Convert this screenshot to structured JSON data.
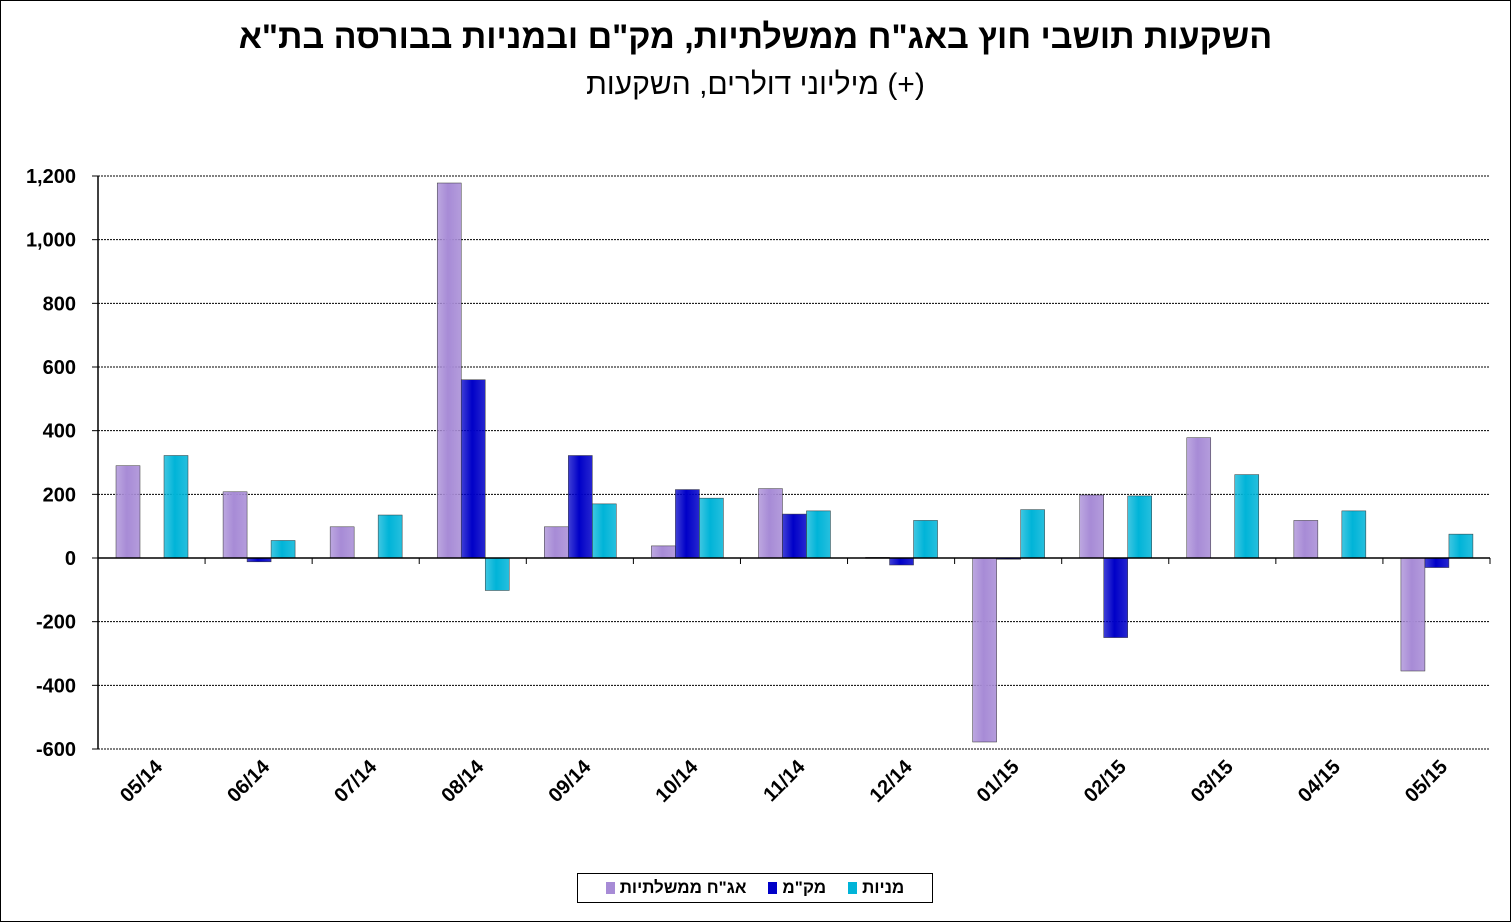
{
  "chart_data": {
    "type": "bar",
    "title": "השקעות תושבי חוץ באג\"ח ממשלתיות, מק\"ם ובמניות בבורסה בת\"א",
    "subtitle": "מיליוני דולרים, השקעות (+)",
    "categories": [
      "05/14",
      "06/14",
      "07/14",
      "08/14",
      "09/14",
      "10/14",
      "11/14",
      "12/14",
      "01/15",
      "02/15",
      "03/15",
      "04/15",
      "05/15"
    ],
    "series": [
      {
        "name": "אג\"ח ממשלתיות",
        "color": "#a78bd6",
        "values": [
          290,
          208,
          98,
          1178,
          98,
          38,
          218,
          2,
          -578,
          198,
          378,
          118,
          -355
        ]
      },
      {
        "name": "מק\"מ",
        "color": "#0000c8",
        "values": [
          0,
          -12,
          0,
          560,
          322,
          215,
          138,
          -22,
          -4,
          -250,
          0,
          0,
          -30
        ]
      },
      {
        "name": "מניות",
        "color": "#00b4d8",
        "values": [
          322,
          55,
          135,
          -102,
          170,
          188,
          148,
          118,
          152,
          195,
          262,
          148,
          75
        ]
      }
    ],
    "ylim": [
      -600,
      1200
    ],
    "yticks": [
      -600,
      -400,
      -200,
      0,
      200,
      400,
      600,
      800,
      1000,
      1200
    ],
    "ytick_labels": [
      "-600",
      "-400",
      "-200",
      "0",
      "200",
      "400",
      "600",
      "800",
      "1,000",
      "1,200"
    ],
    "xlabel": "",
    "ylabel": "",
    "grid": "horizontal",
    "legend_position": "bottom"
  }
}
